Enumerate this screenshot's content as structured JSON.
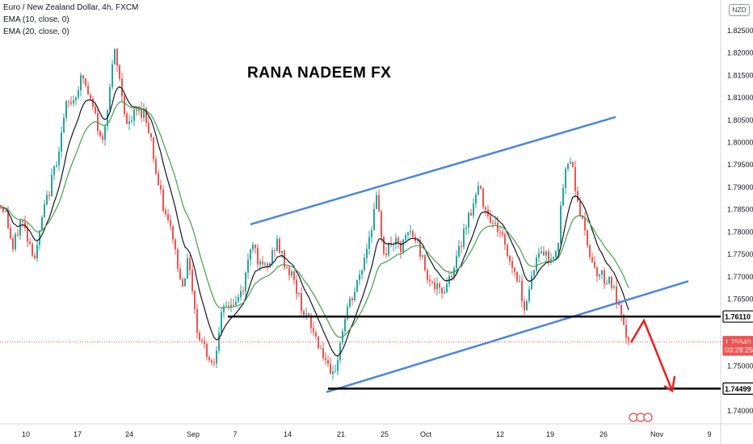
{
  "legend": {
    "symbol": "Euro / New Zealand Dollar, 4h, FXCM",
    "ema10": "EMA (10, close, 0)",
    "ema20": "EMA (20, close, 0)"
  },
  "currency": "NZD",
  "chart_data": {
    "type": "candlestick",
    "title": "RANA NADEEM FX",
    "xlabel": "",
    "ylabel": "",
    "ylim": [
      1.738,
      1.8285
    ],
    "y_ticks": [
      "1.82500",
      "1.82000",
      "1.81500",
      "1.81000",
      "1.80500",
      "1.80000",
      "1.79500",
      "1.79000",
      "1.78500",
      "1.78000",
      "1.77500",
      "1.77000",
      "1.76500",
      "1.75500",
      "1.75000",
      "1.74000"
    ],
    "x_ticks": [
      "10",
      "17",
      "24",
      "Sep",
      "7",
      "14",
      "21",
      "25",
      "Oct",
      "12",
      "19",
      "26",
      "Nov",
      "9"
    ],
    "price_path": [
      [
        0,
        1.786
      ],
      [
        6,
        1.785
      ],
      [
        16,
        1.776
      ],
      [
        26,
        1.783
      ],
      [
        34,
        1.779
      ],
      [
        44,
        1.774
      ],
      [
        52,
        1.783
      ],
      [
        62,
        1.79
      ],
      [
        72,
        1.798
      ],
      [
        82,
        1.808
      ],
      [
        92,
        1.81
      ],
      [
        102,
        1.815
      ],
      [
        110,
        1.81
      ],
      [
        118,
        1.806
      ],
      [
        126,
        1.799
      ],
      [
        134,
        1.81
      ],
      [
        142,
        1.82
      ],
      [
        150,
        1.812
      ],
      [
        158,
        1.803
      ],
      [
        168,
        1.807
      ],
      [
        178,
        1.807
      ],
      [
        186,
        1.802
      ],
      [
        194,
        1.792
      ],
      [
        204,
        1.784
      ],
      [
        214,
        1.779
      ],
      [
        224,
        1.768
      ],
      [
        234,
        1.774
      ],
      [
        244,
        1.758
      ],
      [
        254,
        1.754
      ],
      [
        264,
        1.75
      ],
      [
        272,
        1.76
      ],
      [
        282,
        1.764
      ],
      [
        292,
        1.764
      ],
      [
        302,
        1.768
      ],
      [
        312,
        1.779
      ],
      [
        322,
        1.772
      ],
      [
        332,
        1.772
      ],
      [
        342,
        1.778
      ],
      [
        352,
        1.773
      ],
      [
        362,
        1.77
      ],
      [
        372,
        1.764
      ],
      [
        382,
        1.76
      ],
      [
        392,
        1.756
      ],
      [
        402,
        1.752
      ],
      [
        410,
        1.746
      ],
      [
        418,
        1.752
      ],
      [
        428,
        1.762
      ],
      [
        438,
        1.766
      ],
      [
        448,
        1.772
      ],
      [
        458,
        1.78
      ],
      [
        466,
        1.787
      ],
      [
        476,
        1.775
      ],
      [
        486,
        1.778
      ],
      [
        496,
        1.776
      ],
      [
        506,
        1.78
      ],
      [
        516,
        1.778
      ],
      [
        526,
        1.772
      ],
      [
        536,
        1.768
      ],
      [
        546,
        1.766
      ],
      [
        556,
        1.77
      ],
      [
        566,
        1.774
      ],
      [
        576,
        1.782
      ],
      [
        586,
        1.786
      ],
      [
        592,
        1.79
      ],
      [
        600,
        1.786
      ],
      [
        610,
        1.782
      ],
      [
        620,
        1.78
      ],
      [
        630,
        1.774
      ],
      [
        640,
        1.77
      ],
      [
        650,
        1.763
      ],
      [
        660,
        1.772
      ],
      [
        670,
        1.776
      ],
      [
        680,
        1.774
      ],
      [
        690,
        1.777
      ],
      [
        698,
        1.792
      ],
      [
        706,
        1.797
      ],
      [
        716,
        1.786
      ],
      [
        726,
        1.778
      ],
      [
        736,
        1.772
      ],
      [
        746,
        1.77
      ],
      [
        756,
        1.769
      ],
      [
        764,
        1.764
      ],
      [
        772,
        1.758
      ],
      [
        780,
        1.7554
      ]
    ],
    "annotations": {
      "channel_upper": [
        [
          310,
          1.7817
        ],
        [
          762,
          1.8057
        ]
      ],
      "channel_lower": [
        [
          404,
          1.7442
        ],
        [
          852,
          1.769
        ]
      ],
      "support_line_1": {
        "level": 1.7611,
        "x_start": 282
      },
      "support_line_2": {
        "level": 1.74499,
        "x_start": 406
      },
      "last_price_line": 1.7554,
      "projection_arrow": [
        [
          781,
          1.7553
        ],
        [
          797,
          1.7602
        ],
        [
          832,
          1.7445
        ]
      ]
    },
    "price_labels": [
      {
        "text": "1.76110",
        "value": 1.7611,
        "style": "black-outline"
      },
      {
        "text": "1.75540",
        "value": 1.7554,
        "style": "red"
      },
      {
        "text": "03:28:25",
        "value": 1.7537,
        "style": "red"
      },
      {
        "text": "1.74499",
        "value": 1.74499,
        "style": "black-outline"
      }
    ],
    "series": [
      {
        "name": "EMA (10, close, 0)",
        "color": "#131722"
      },
      {
        "name": "EMA (20, close, 0)",
        "color": "#43a047"
      }
    ]
  },
  "colors": {
    "up_candle": "#26a69a",
    "down_candle": "#ef5350",
    "channel": "#4a86e0",
    "support": "#000000",
    "arrow": "#ef1d1d",
    "axis_text": "#131722"
  }
}
